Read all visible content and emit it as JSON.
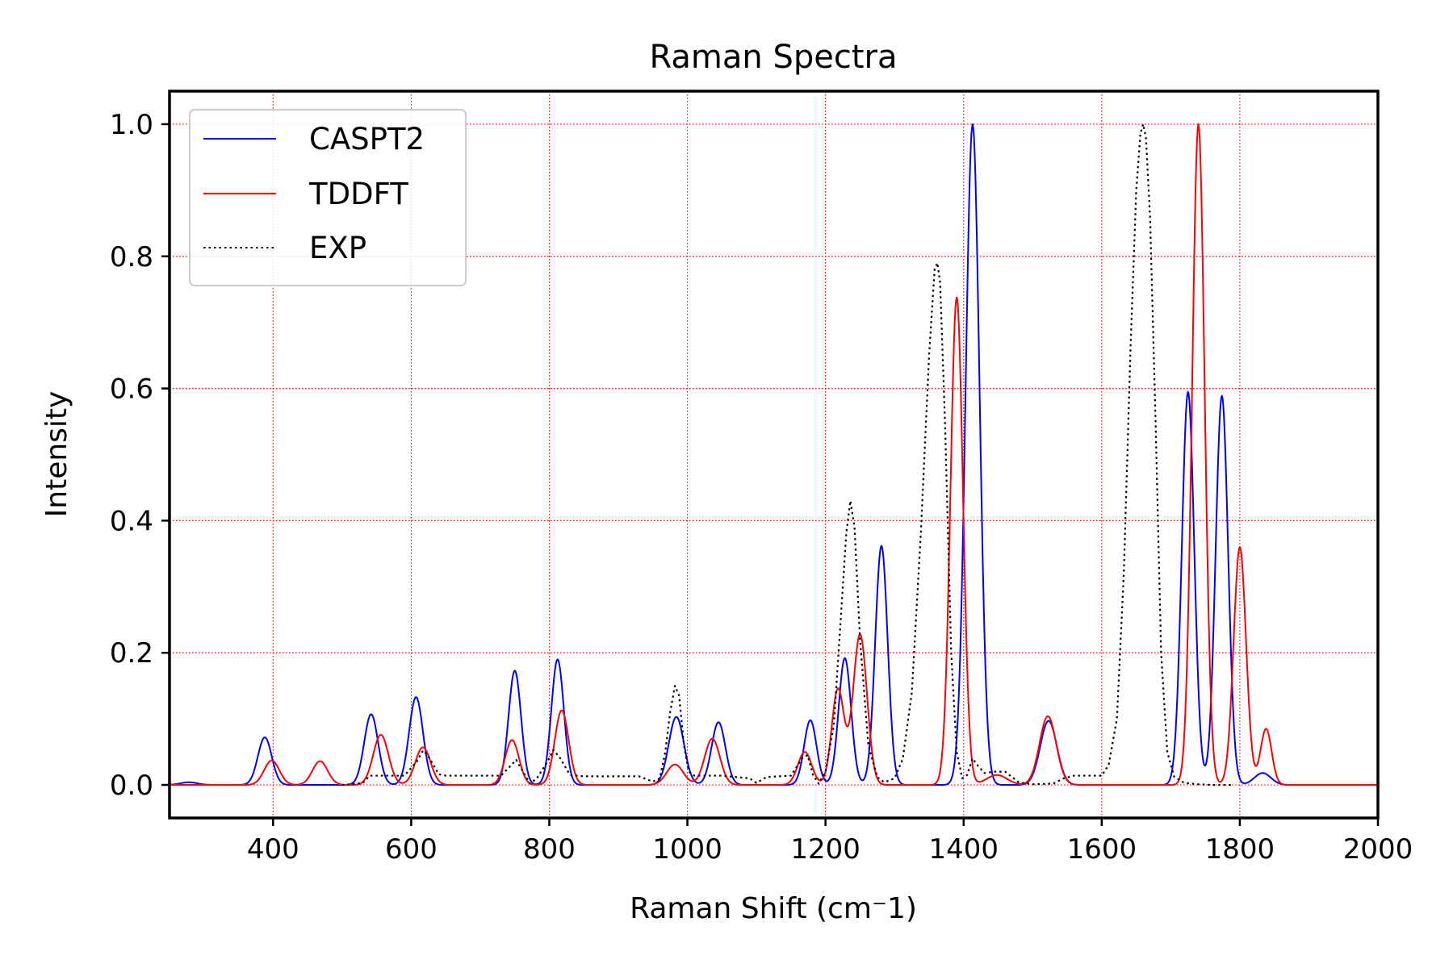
{
  "chart_data": {
    "type": "line",
    "title": "Raman Spectra",
    "xlabel": "Raman Shift (cm⁻1)",
    "ylabel": "Intensity",
    "xlim": [
      250,
      2000
    ],
    "ylim": [
      -0.05,
      1.05
    ],
    "xticks": [
      400,
      600,
      800,
      1000,
      1200,
      1400,
      1600,
      1800,
      2000
    ],
    "yticks": [
      0.0,
      0.2,
      0.4,
      0.6,
      0.8,
      1.0
    ],
    "xtick_labels": [
      "400",
      "600",
      "800",
      "1000",
      "1200",
      "1400",
      "1600",
      "1800",
      "2000"
    ],
    "ytick_labels": [
      "0.0",
      "0.2",
      "0.4",
      "0.6",
      "0.8",
      "1.0"
    ],
    "grid": true,
    "grid_color": "#ff0000",
    "grid_style": "dotted",
    "legend_position": "top-left",
    "series": [
      {
        "name": "CASPT2",
        "color": "#0000ff",
        "style": "solid",
        "x_range": [
          250,
          2000
        ],
        "baseline": 0.0,
        "peaks": [
          {
            "x": 278,
            "h": 0.004,
            "w": 12
          },
          {
            "x": 388,
            "h": 0.072,
            "w": 10
          },
          {
            "x": 542,
            "h": 0.107,
            "w": 10
          },
          {
            "x": 607,
            "h": 0.133,
            "w": 10
          },
          {
            "x": 750,
            "h": 0.173,
            "w": 9
          },
          {
            "x": 812,
            "h": 0.19,
            "w": 9
          },
          {
            "x": 984,
            "h": 0.103,
            "w": 11
          },
          {
            "x": 1045,
            "h": 0.095,
            "w": 10
          },
          {
            "x": 1178,
            "h": 0.098,
            "w": 9
          },
          {
            "x": 1228,
            "h": 0.192,
            "w": 9
          },
          {
            "x": 1281,
            "h": 0.362,
            "w": 9
          },
          {
            "x": 1413,
            "h": 1.0,
            "w": 10
          },
          {
            "x": 1523,
            "h": 0.097,
            "w": 12
          },
          {
            "x": 1725,
            "h": 0.595,
            "w": 9
          },
          {
            "x": 1774,
            "h": 0.589,
            "w": 9
          },
          {
            "x": 1833,
            "h": 0.018,
            "w": 12
          }
        ]
      },
      {
        "name": "TDDFT",
        "color": "#ff0000",
        "style": "solid",
        "x_range": [
          250,
          2000
        ],
        "baseline": 0.0,
        "peaks": [
          {
            "x": 398,
            "h": 0.037,
            "w": 11
          },
          {
            "x": 468,
            "h": 0.036,
            "w": 11
          },
          {
            "x": 556,
            "h": 0.076,
            "w": 11
          },
          {
            "x": 617,
            "h": 0.057,
            "w": 11
          },
          {
            "x": 746,
            "h": 0.068,
            "w": 10
          },
          {
            "x": 818,
            "h": 0.113,
            "w": 10
          },
          {
            "x": 982,
            "h": 0.031,
            "w": 12
          },
          {
            "x": 1036,
            "h": 0.07,
            "w": 11
          },
          {
            "x": 1170,
            "h": 0.05,
            "w": 10
          },
          {
            "x": 1218,
            "h": 0.145,
            "w": 9
          },
          {
            "x": 1250,
            "h": 0.228,
            "w": 10
          },
          {
            "x": 1390,
            "h": 0.738,
            "w": 9
          },
          {
            "x": 1448,
            "h": 0.015,
            "w": 15
          },
          {
            "x": 1522,
            "h": 0.104,
            "w": 12
          },
          {
            "x": 1740,
            "h": 1.0,
            "w": 9
          },
          {
            "x": 1800,
            "h": 0.36,
            "w": 9
          },
          {
            "x": 1838,
            "h": 0.085,
            "w": 8
          }
        ]
      },
      {
        "name": "EXP",
        "color": "#000000",
        "style": "dotted",
        "x_range": [
          500,
          1800
        ],
        "points": [
          [
            500,
            0.0
          ],
          [
            530,
            0.003
          ],
          [
            540,
            0.014
          ],
          [
            570,
            0.014
          ],
          [
            590,
            0.014
          ],
          [
            608,
            0.035
          ],
          [
            617,
            0.052
          ],
          [
            624,
            0.045
          ],
          [
            640,
            0.016
          ],
          [
            650,
            0.014
          ],
          [
            700,
            0.014
          ],
          [
            730,
            0.014
          ],
          [
            745,
            0.03
          ],
          [
            752,
            0.038
          ],
          [
            762,
            0.02
          ],
          [
            772,
            0.002
          ],
          [
            782,
            0.01
          ],
          [
            796,
            0.033
          ],
          [
            806,
            0.053
          ],
          [
            816,
            0.04
          ],
          [
            830,
            0.015
          ],
          [
            850,
            0.013
          ],
          [
            900,
            0.013
          ],
          [
            930,
            0.013
          ],
          [
            950,
            0.005
          ],
          [
            960,
            0.01
          ],
          [
            968,
            0.05
          ],
          [
            975,
            0.11
          ],
          [
            982,
            0.15
          ],
          [
            988,
            0.135
          ],
          [
            995,
            0.06
          ],
          [
            1002,
            0.02
          ],
          [
            1010,
            0.014
          ],
          [
            1050,
            0.014
          ],
          [
            1090,
            0.01
          ],
          [
            1100,
            0.003
          ],
          [
            1115,
            0.012
          ],
          [
            1150,
            0.014
          ],
          [
            1166,
            0.04
          ],
          [
            1174,
            0.045
          ],
          [
            1182,
            0.015
          ],
          [
            1190,
            0.002
          ],
          [
            1200,
            0.02
          ],
          [
            1212,
            0.09
          ],
          [
            1222,
            0.25
          ],
          [
            1230,
            0.38
          ],
          [
            1236,
            0.43
          ],
          [
            1242,
            0.39
          ],
          [
            1250,
            0.22
          ],
          [
            1262,
            0.06
          ],
          [
            1275,
            0.012
          ],
          [
            1285,
            0.004
          ],
          [
            1300,
            0.01
          ],
          [
            1312,
            0.04
          ],
          [
            1325,
            0.14
          ],
          [
            1338,
            0.38
          ],
          [
            1350,
            0.65
          ],
          [
            1358,
            0.78
          ],
          [
            1362,
            0.79
          ],
          [
            1366,
            0.76
          ],
          [
            1373,
            0.55
          ],
          [
            1382,
            0.2
          ],
          [
            1390,
            0.05
          ],
          [
            1398,
            0.01
          ],
          [
            1405,
            0.015
          ],
          [
            1413,
            0.04
          ],
          [
            1420,
            0.03
          ],
          [
            1430,
            0.018
          ],
          [
            1445,
            0.02
          ],
          [
            1460,
            0.02
          ],
          [
            1480,
            0.004
          ],
          [
            1500,
            0.001
          ],
          [
            1530,
            0.002
          ],
          [
            1545,
            0.01
          ],
          [
            1560,
            0.014
          ],
          [
            1600,
            0.014
          ],
          [
            1610,
            0.03
          ],
          [
            1622,
            0.1
          ],
          [
            1632,
            0.32
          ],
          [
            1642,
            0.67
          ],
          [
            1650,
            0.9
          ],
          [
            1656,
            0.985
          ],
          [
            1660,
            1.0
          ],
          [
            1664,
            0.98
          ],
          [
            1670,
            0.86
          ],
          [
            1678,
            0.55
          ],
          [
            1686,
            0.2
          ],
          [
            1695,
            0.05
          ],
          [
            1705,
            0.012
          ],
          [
            1720,
            0.003
          ],
          [
            1740,
            0.001
          ],
          [
            1760,
            0.0
          ],
          [
            1790,
            0.0
          ]
        ]
      }
    ]
  }
}
